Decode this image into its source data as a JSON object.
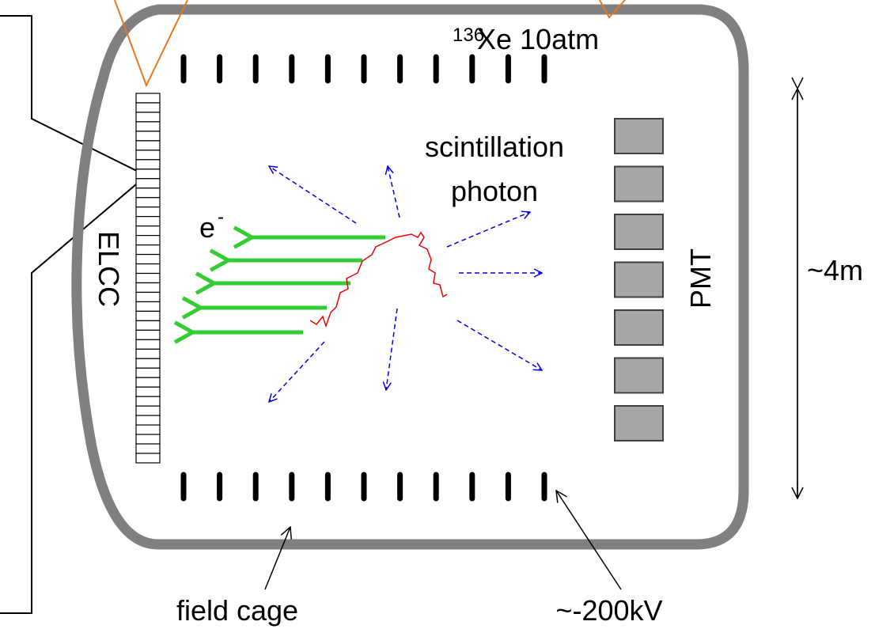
{
  "labels": {
    "isotope": "136",
    "gas": "Xe 10atm",
    "scintillation": "scintillation",
    "photon": "photon",
    "electron": "e",
    "electron_charge": "-",
    "elcc": "ELCC",
    "pmt": "PMT",
    "size": "~4m",
    "field_cage": "field cage",
    "voltage": "~-200kV"
  }
}
